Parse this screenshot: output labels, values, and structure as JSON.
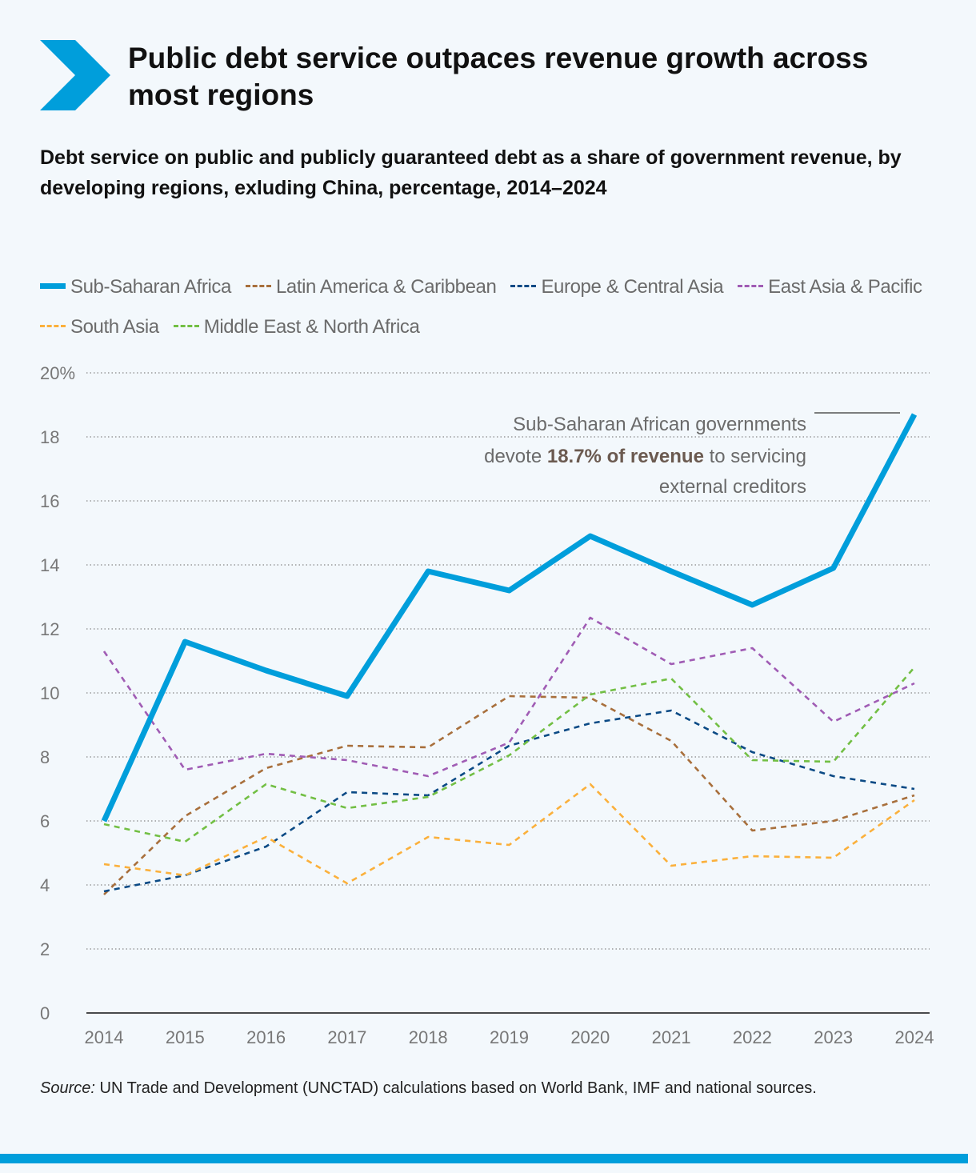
{
  "title": "Public debt service outpaces revenue growth across most regions",
  "subtitle": "Debt service on public and publicly guaranteed debt as a share of government revenue, by developing regions, exluding China, percentage, 2014–2024",
  "source_label": "Source:",
  "source_text": " UN Trade and Development (UNCTAD) calculations based on World Bank, IMF and national sources.",
  "annotation": {
    "line1": "Sub-Saharan African governments",
    "line2_pre": "devote ",
    "line2_bold": "18.7% of revenue",
    "line2_post": " to servicing",
    "line3": "external creditors"
  },
  "colors": {
    "accent": "#009edb",
    "background": "#f3f8fc"
  },
  "chart_data": {
    "type": "line",
    "x": [
      2014,
      2015,
      2016,
      2017,
      2018,
      2019,
      2020,
      2021,
      2022,
      2023,
      2024
    ],
    "ylim": [
      0,
      20
    ],
    "yticks": [
      0,
      2,
      4,
      6,
      8,
      10,
      12,
      14,
      16,
      18,
      20
    ],
    "ytick_labels": [
      "0",
      "2",
      "4",
      "6",
      "8",
      "10",
      "12",
      "14",
      "16",
      "18",
      "20%"
    ],
    "grid": true,
    "legend_placement": "top",
    "series": [
      {
        "name": "Sub-Saharan Africa",
        "color": "#009edb",
        "style": "solid",
        "values": [
          6.0,
          11.6,
          10.7,
          9.9,
          13.8,
          13.2,
          14.9,
          13.8,
          12.75,
          13.9,
          18.7
        ]
      },
      {
        "name": "Latin America & Caribbean",
        "color": "#a86f3c",
        "style": "dashed",
        "values": [
          3.7,
          6.15,
          7.65,
          8.35,
          8.3,
          9.9,
          9.85,
          8.5,
          5.7,
          6.0,
          6.8
        ]
      },
      {
        "name": "Europe & Central Asia",
        "color": "#0b4a85",
        "style": "dashed",
        "values": [
          3.8,
          4.3,
          5.2,
          6.9,
          6.8,
          8.35,
          9.05,
          9.45,
          8.15,
          7.4,
          7.0
        ]
      },
      {
        "name": "East Asia & Pacific",
        "color": "#a05cb4",
        "style": "dashed",
        "values": [
          11.3,
          7.6,
          8.1,
          7.9,
          7.4,
          8.45,
          12.35,
          10.9,
          11.4,
          9.1,
          10.3
        ]
      },
      {
        "name": "South Asia",
        "color": "#fbb03b",
        "style": "dashed",
        "values": [
          4.65,
          4.3,
          5.5,
          4.05,
          5.5,
          5.25,
          7.15,
          4.6,
          4.9,
          4.85,
          6.65
        ]
      },
      {
        "name": "Middle East & North Africa",
        "color": "#72bf44",
        "style": "dashed",
        "values": [
          5.9,
          5.35,
          7.15,
          6.4,
          6.75,
          8.05,
          9.95,
          10.45,
          7.9,
          7.85,
          10.8
        ]
      }
    ]
  }
}
